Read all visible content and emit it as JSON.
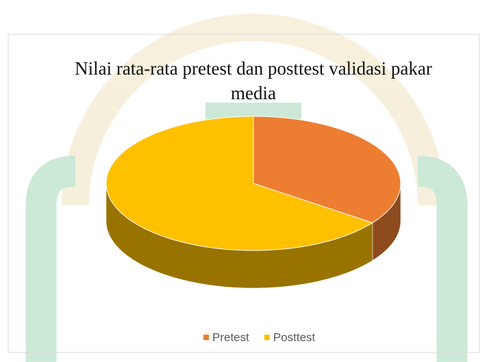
{
  "chart_data": {
    "type": "pie3d",
    "title": "Nilai rata-rata pretest dan posttest validasi pakar media",
    "categories": [
      "Pretest",
      "Posttest"
    ],
    "values": [
      35,
      65
    ],
    "colors": [
      "#ED7D31",
      "#FFC000"
    ],
    "legend": "bottom"
  }
}
